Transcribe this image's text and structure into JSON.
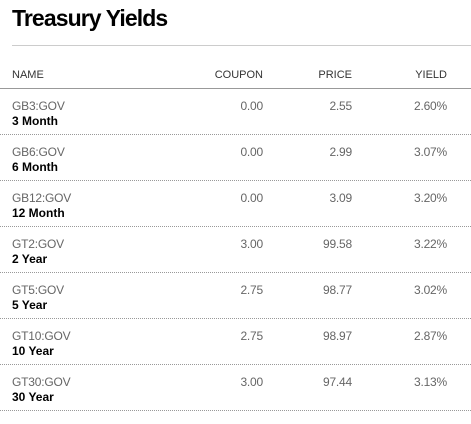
{
  "title": "Treasury Yields",
  "columns": {
    "name": "NAME",
    "coupon": "COUPON",
    "price": "PRICE",
    "yield": "YIELD"
  },
  "rows": [
    {
      "ticker": "GB3:GOV",
      "term": "3 Month",
      "coupon": "0.00",
      "price": "2.55",
      "yield": "2.60%"
    },
    {
      "ticker": "GB6:GOV",
      "term": "6 Month",
      "coupon": "0.00",
      "price": "2.99",
      "yield": "3.07%"
    },
    {
      "ticker": "GB12:GOV",
      "term": "12 Month",
      "coupon": "0.00",
      "price": "3.09",
      "yield": "3.20%"
    },
    {
      "ticker": "GT2:GOV",
      "term": "2 Year",
      "coupon": "3.00",
      "price": "99.58",
      "yield": "3.22%"
    },
    {
      "ticker": "GT5:GOV",
      "term": "5 Year",
      "coupon": "2.75",
      "price": "98.77",
      "yield": "3.02%"
    },
    {
      "ticker": "GT10:GOV",
      "term": "10 Year",
      "coupon": "2.75",
      "price": "98.97",
      "yield": "2.87%"
    },
    {
      "ticker": "GT30:GOV",
      "term": "30 Year",
      "coupon": "3.00",
      "price": "97.44",
      "yield": "3.13%"
    }
  ]
}
